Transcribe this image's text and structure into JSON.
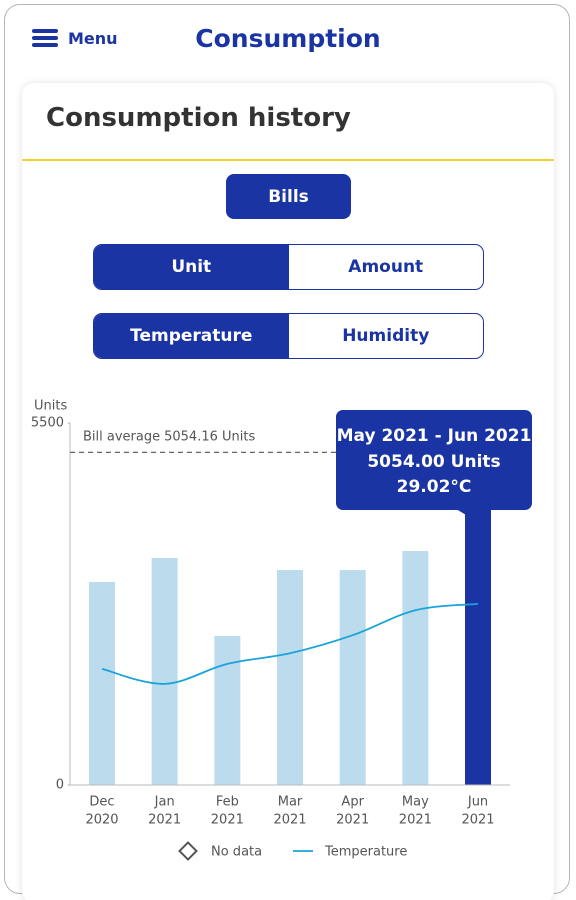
{
  "header": {
    "menu": "Menu",
    "title": "Consumption"
  },
  "card": {
    "title": "Consumption history"
  },
  "buttons": {
    "bills": "Bills"
  },
  "toggles": [
    [
      "Unit",
      "Amount"
    ],
    [
      "Temperature",
      "Humidity"
    ]
  ],
  "chart_data": {
    "type": "bar",
    "y_label": "Units",
    "categories": [
      [
        "Dec",
        "2020"
      ],
      [
        "Jan",
        "2021"
      ],
      [
        "Feb",
        "2021"
      ],
      [
        "Mar",
        "2021"
      ],
      [
        "Apr",
        "2021"
      ],
      [
        "May",
        "2021"
      ],
      [
        "Jun",
        "2021"
      ]
    ],
    "values": [
      3084,
      3449,
      2263,
      3266,
      3266,
      3555,
      5054
    ],
    "value_labels": [
      null,
      null,
      null,
      null,
      null,
      null,
      "5054.00 Units"
    ],
    "tooltip_title": "May 2021 - Jun 2021",
    "color": "#bcdcee",
    "highlight_color": "#1b34a3",
    "ylim": [
      0,
      5500
    ],
    "yticks": [
      0,
      5500
    ],
    "average": {
      "label": "Bill average",
      "value": 5054.16,
      "value_label": "5054.16 Units"
    },
    "series": [
      {
        "name": "Temperature",
        "color": "#1aa3d9",
        "axis": "y2",
        "values": [
          18.6,
          16.2,
          19.4,
          21.1,
          24.0,
          28.0,
          29.02
        ],
        "value_labels": [
          null,
          null,
          null,
          null,
          null,
          null,
          "29.02°C"
        ]
      }
    ],
    "y2lim": [
      0,
      58
    ],
    "no_data_label": "No data"
  }
}
